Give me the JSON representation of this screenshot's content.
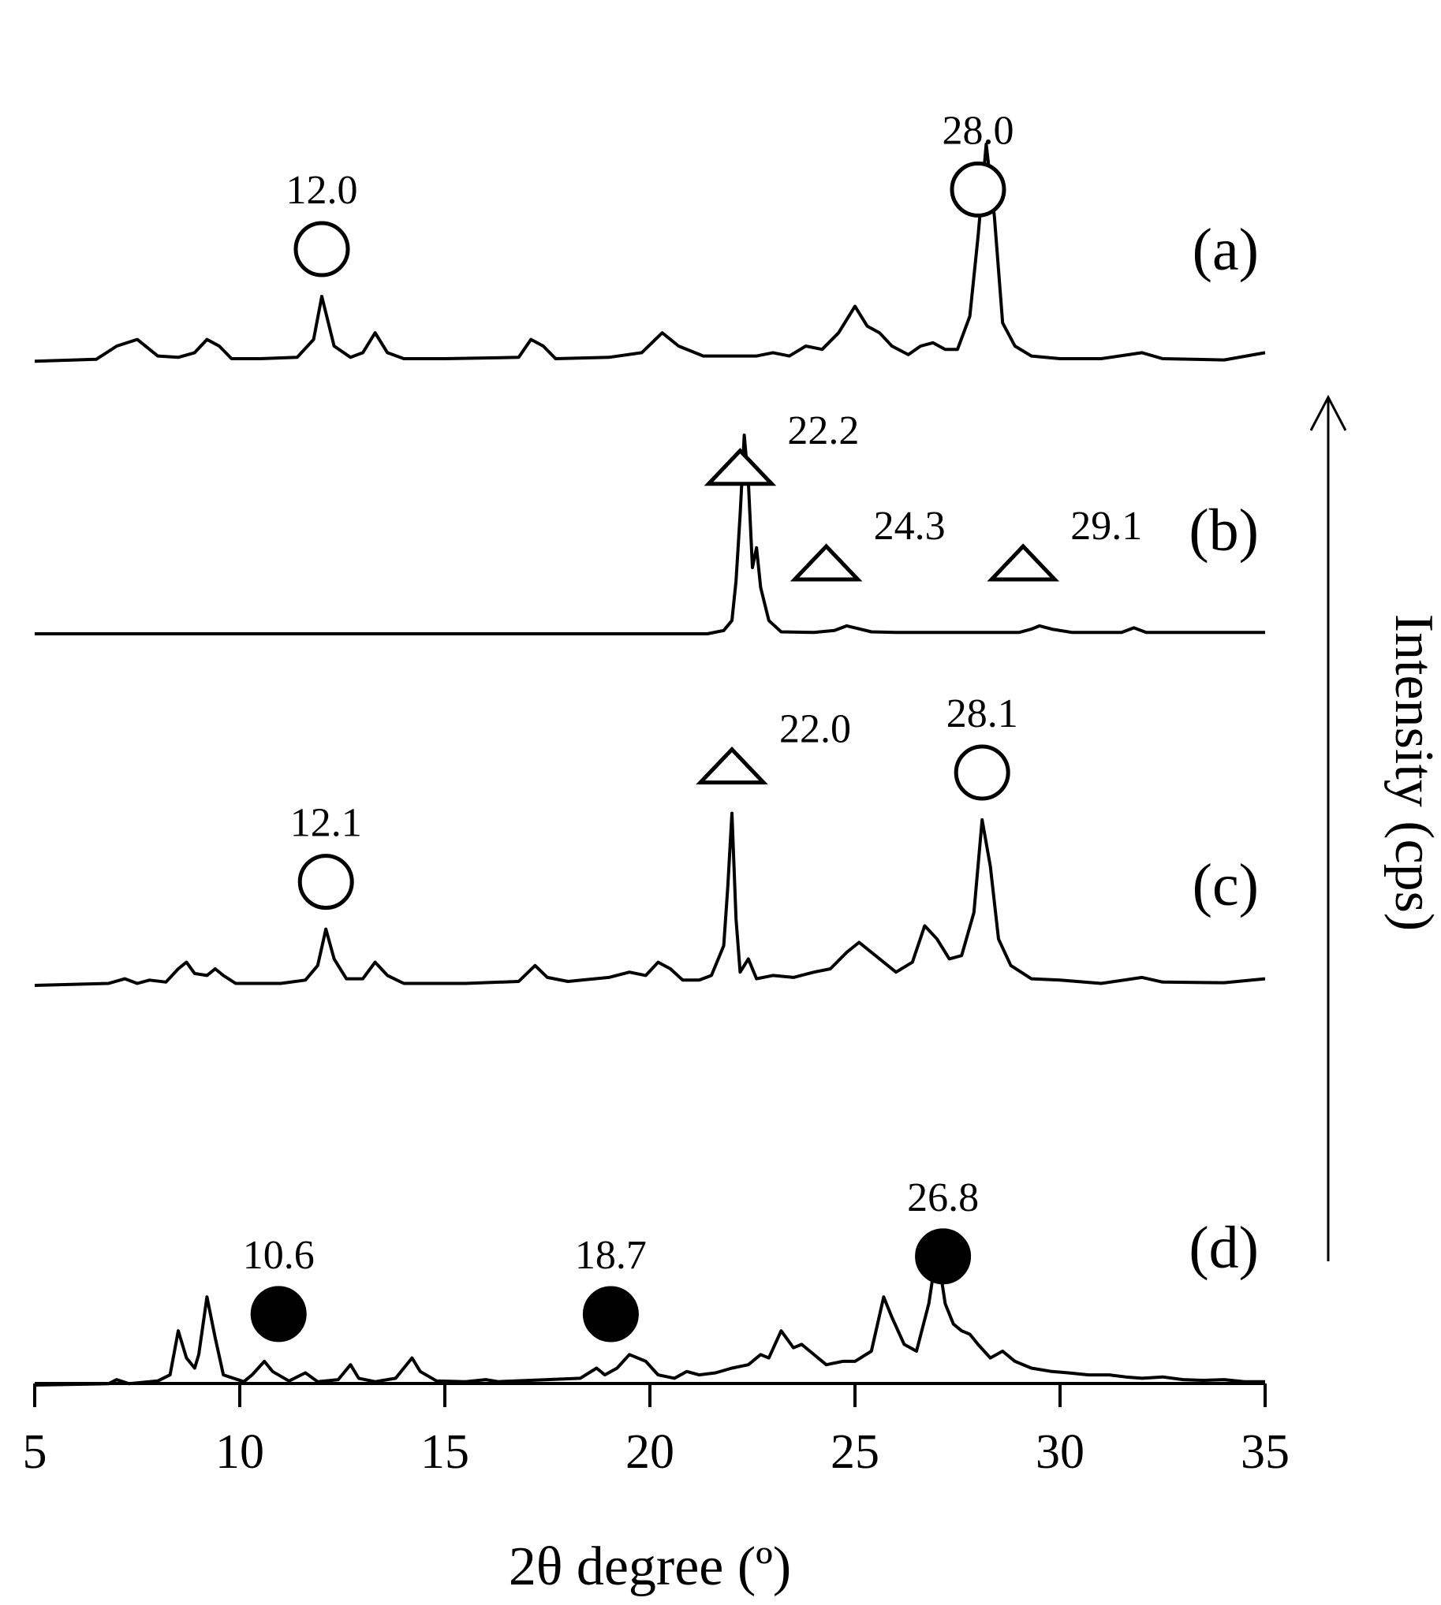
{
  "chart_data": {
    "type": "line",
    "title": "",
    "xlabel": "2θ degree (º)",
    "ylabel": "Intensity (cps)",
    "xlim": [
      5,
      35
    ],
    "xticks": [
      "5",
      "10",
      "15",
      "20",
      "25",
      "30",
      "35"
    ],
    "grid": false,
    "marker_colors": {
      "open": "#ffffff",
      "filled": "#000000",
      "stroke": "#000000"
    },
    "series": [
      {
        "name": "(a)",
        "baseline": 0,
        "points": [
          [
            5.0,
            0.2
          ],
          [
            6.5,
            0.5
          ],
          [
            7.0,
            2.5
          ],
          [
            7.5,
            3.5
          ],
          [
            8.0,
            1.0
          ],
          [
            8.5,
            0.8
          ],
          [
            8.9,
            1.5
          ],
          [
            9.2,
            3.5
          ],
          [
            9.5,
            2.5
          ],
          [
            9.8,
            0.6
          ],
          [
            10.5,
            0.6
          ],
          [
            11.4,
            0.8
          ],
          [
            11.8,
            3.5
          ],
          [
            12.0,
            10
          ],
          [
            12.3,
            2.5
          ],
          [
            12.7,
            0.8
          ],
          [
            13.0,
            1.5
          ],
          [
            13.3,
            4.5
          ],
          [
            13.6,
            1.5
          ],
          [
            14.0,
            0.6
          ],
          [
            15.0,
            0.6
          ],
          [
            16.8,
            0.8
          ],
          [
            17.1,
            3.5
          ],
          [
            17.4,
            2.5
          ],
          [
            17.7,
            0.6
          ],
          [
            19.0,
            0.8
          ],
          [
            19.8,
            1.5
          ],
          [
            20.3,
            4.5
          ],
          [
            20.7,
            2.5
          ],
          [
            21.3,
            1.0
          ],
          [
            22.6,
            1.0
          ],
          [
            23.0,
            1.5
          ],
          [
            23.4,
            1.0
          ],
          [
            23.8,
            2.5
          ],
          [
            24.2,
            2.0
          ],
          [
            24.6,
            4.5
          ],
          [
            25.0,
            8.5
          ],
          [
            25.3,
            5.5
          ],
          [
            25.6,
            4.5
          ],
          [
            25.9,
            2.5
          ],
          [
            26.3,
            1.2
          ],
          [
            26.6,
            2.5
          ],
          [
            26.9,
            3.0
          ],
          [
            27.2,
            2.0
          ],
          [
            27.5,
            2.0
          ],
          [
            27.8,
            7.0
          ],
          [
            28.0,
            19
          ],
          [
            28.2,
            33
          ],
          [
            28.4,
            22
          ],
          [
            28.6,
            6.0
          ],
          [
            28.9,
            2.5
          ],
          [
            29.3,
            1.0
          ],
          [
            30.0,
            0.6
          ],
          [
            31.0,
            0.6
          ],
          [
            32.0,
            1.5
          ],
          [
            32.5,
            0.6
          ],
          [
            34.0,
            0.4
          ],
          [
            35.0,
            1.5
          ]
        ]
      },
      {
        "name": "(b)",
        "baseline": 0,
        "points": [
          [
            5.0,
            0
          ],
          [
            20.0,
            0
          ],
          [
            21.4,
            0
          ],
          [
            21.8,
            0.5
          ],
          [
            22.0,
            2.0
          ],
          [
            22.1,
            8.0
          ],
          [
            22.2,
            18
          ],
          [
            22.3,
            30
          ],
          [
            22.4,
            23
          ],
          [
            22.5,
            10
          ],
          [
            22.6,
            13
          ],
          [
            22.7,
            7.0
          ],
          [
            22.9,
            2.0
          ],
          [
            23.2,
            0.3
          ],
          [
            24.0,
            0.2
          ],
          [
            24.5,
            0.5
          ],
          [
            24.8,
            1.2
          ],
          [
            25.0,
            0.9
          ],
          [
            25.4,
            0.3
          ],
          [
            26.0,
            0.2
          ],
          [
            29.0,
            0.2
          ],
          [
            29.3,
            0.7
          ],
          [
            29.5,
            1.2
          ],
          [
            29.8,
            0.7
          ],
          [
            30.3,
            0.2
          ],
          [
            31.5,
            0.2
          ],
          [
            31.8,
            0.9
          ],
          [
            32.1,
            0.2
          ],
          [
            35.0,
            0.2
          ]
        ]
      },
      {
        "name": "(c)",
        "baseline": 0,
        "points": [
          [
            5.0,
            0
          ],
          [
            6.8,
            0.3
          ],
          [
            7.2,
            1.0
          ],
          [
            7.5,
            0.3
          ],
          [
            7.8,
            0.8
          ],
          [
            8.2,
            0.5
          ],
          [
            8.5,
            2.5
          ],
          [
            8.7,
            3.5
          ],
          [
            8.9,
            1.8
          ],
          [
            9.2,
            1.5
          ],
          [
            9.4,
            2.5
          ],
          [
            9.6,
            1.5
          ],
          [
            9.9,
            0.3
          ],
          [
            11.0,
            0.3
          ],
          [
            11.6,
            0.8
          ],
          [
            11.9,
            3.0
          ],
          [
            12.1,
            8.5
          ],
          [
            12.3,
            4.0
          ],
          [
            12.6,
            1.0
          ],
          [
            13.0,
            1.0
          ],
          [
            13.3,
            3.5
          ],
          [
            13.6,
            1.5
          ],
          [
            14.0,
            0.3
          ],
          [
            15.5,
            0.3
          ],
          [
            16.8,
            0.6
          ],
          [
            17.2,
            3.0
          ],
          [
            17.5,
            1.2
          ],
          [
            18.0,
            0.6
          ],
          [
            19.0,
            1.2
          ],
          [
            19.5,
            2.0
          ],
          [
            19.9,
            1.5
          ],
          [
            20.2,
            3.5
          ],
          [
            20.5,
            2.5
          ],
          [
            20.8,
            0.8
          ],
          [
            21.2,
            0.8
          ],
          [
            21.5,
            1.5
          ],
          [
            21.8,
            6.0
          ],
          [
            21.9,
            15
          ],
          [
            22.0,
            26
          ],
          [
            22.1,
            10
          ],
          [
            22.2,
            2.0
          ],
          [
            22.4,
            4.0
          ],
          [
            22.6,
            1.0
          ],
          [
            23.0,
            1.5
          ],
          [
            23.5,
            1.2
          ],
          [
            24.0,
            2.0
          ],
          [
            24.4,
            2.5
          ],
          [
            24.8,
            5.0
          ],
          [
            25.1,
            6.5
          ],
          [
            25.5,
            4.5
          ],
          [
            26.0,
            2.0
          ],
          [
            26.4,
            3.5
          ],
          [
            26.7,
            9.0
          ],
          [
            27.0,
            7.0
          ],
          [
            27.3,
            4.0
          ],
          [
            27.6,
            4.5
          ],
          [
            27.9,
            11
          ],
          [
            28.1,
            25
          ],
          [
            28.3,
            18
          ],
          [
            28.5,
            7.0
          ],
          [
            28.8,
            3.0
          ],
          [
            29.3,
            1.0
          ],
          [
            30.0,
            0.8
          ],
          [
            31.0,
            0.3
          ],
          [
            32.0,
            1.2
          ],
          [
            32.5,
            0.5
          ],
          [
            34.0,
            0.4
          ],
          [
            35.0,
            1.0
          ]
        ]
      },
      {
        "name": "(d)",
        "baseline": 0,
        "points": [
          [
            5.0,
            0
          ],
          [
            6.8,
            0.2
          ],
          [
            7.0,
            0.8
          ],
          [
            7.3,
            0.2
          ],
          [
            8.0,
            0.6
          ],
          [
            8.3,
            1.5
          ],
          [
            8.5,
            8.0
          ],
          [
            8.7,
            4.0
          ],
          [
            8.9,
            2.5
          ],
          [
            9.0,
            4.5
          ],
          [
            9.2,
            13
          ],
          [
            9.4,
            7.0
          ],
          [
            9.6,
            1.5
          ],
          [
            10.1,
            0.5
          ],
          [
            10.3,
            1.5
          ],
          [
            10.6,
            3.5
          ],
          [
            10.8,
            2.0
          ],
          [
            11.2,
            0.6
          ],
          [
            11.6,
            1.8
          ],
          [
            11.9,
            0.5
          ],
          [
            12.4,
            0.8
          ],
          [
            12.7,
            3.0
          ],
          [
            12.9,
            1.0
          ],
          [
            13.3,
            0.5
          ],
          [
            13.8,
            1.0
          ],
          [
            14.2,
            4.0
          ],
          [
            14.4,
            2.0
          ],
          [
            14.8,
            0.6
          ],
          [
            15.5,
            0.5
          ],
          [
            16.0,
            0.8
          ],
          [
            16.3,
            0.5
          ],
          [
            17.5,
            0.8
          ],
          [
            18.3,
            1.0
          ],
          [
            18.7,
            2.5
          ],
          [
            18.9,
            1.5
          ],
          [
            19.2,
            2.5
          ],
          [
            19.5,
            4.5
          ],
          [
            19.9,
            3.5
          ],
          [
            20.2,
            1.5
          ],
          [
            20.6,
            1.0
          ],
          [
            20.9,
            2.0
          ],
          [
            21.2,
            1.5
          ],
          [
            21.6,
            1.8
          ],
          [
            22.0,
            2.5
          ],
          [
            22.4,
            3.0
          ],
          [
            22.7,
            4.5
          ],
          [
            22.9,
            4.0
          ],
          [
            23.2,
            8.0
          ],
          [
            23.5,
            5.5
          ],
          [
            23.7,
            6.0
          ],
          [
            23.9,
            5.0
          ],
          [
            24.3,
            3.0
          ],
          [
            24.7,
            3.5
          ],
          [
            25.0,
            3.5
          ],
          [
            25.4,
            5.0
          ],
          [
            25.7,
            13
          ],
          [
            25.9,
            10
          ],
          [
            26.2,
            6.0
          ],
          [
            26.5,
            5.0
          ],
          [
            26.8,
            12
          ],
          [
            27.0,
            20
          ],
          [
            27.2,
            12
          ],
          [
            27.4,
            9.0
          ],
          [
            27.6,
            8.0
          ],
          [
            27.8,
            7.5
          ],
          [
            28.0,
            6.0
          ],
          [
            28.3,
            4.0
          ],
          [
            28.6,
            5.0
          ],
          [
            28.9,
            3.5
          ],
          [
            29.3,
            2.5
          ],
          [
            29.8,
            2.0
          ],
          [
            30.2,
            1.8
          ],
          [
            30.7,
            1.5
          ],
          [
            31.2,
            1.5
          ],
          [
            31.6,
            1.2
          ],
          [
            32.0,
            1.0
          ],
          [
            32.5,
            1.2
          ],
          [
            33.0,
            0.8
          ],
          [
            33.5,
            0.7
          ],
          [
            34.0,
            0.8
          ],
          [
            34.5,
            0.5
          ],
          [
            35.0,
            0.5
          ]
        ]
      }
    ],
    "peak_annotations": [
      {
        "series": "(a)",
        "x": 12.0,
        "label": "12.0",
        "marker": "open-circle"
      },
      {
        "series": "(a)",
        "x": 28.0,
        "label": "28.0",
        "marker": "open-circle"
      },
      {
        "series": "(b)",
        "x": 22.2,
        "label": "22.2",
        "marker": "open-triangle"
      },
      {
        "series": "(b)",
        "x": 24.3,
        "label": "24.3",
        "marker": "open-triangle"
      },
      {
        "series": "(b)",
        "x": 29.1,
        "label": "29.1",
        "marker": "open-triangle"
      },
      {
        "series": "(c)",
        "x": 12.1,
        "label": "12.1",
        "marker": "open-circle"
      },
      {
        "series": "(c)",
        "x": 22.0,
        "label": "22.0",
        "marker": "open-triangle"
      },
      {
        "series": "(c)",
        "x": 28.1,
        "label": "28.1",
        "marker": "open-circle"
      },
      {
        "series": "(d)",
        "x": 10.6,
        "label": "10.6",
        "marker": "filled-circle"
      },
      {
        "series": "(d)",
        "x": 18.7,
        "label": "18.7",
        "marker": "filled-circle"
      },
      {
        "series": "(d)",
        "x": 26.8,
        "label": "26.8",
        "marker": "filled-circle"
      }
    ]
  }
}
